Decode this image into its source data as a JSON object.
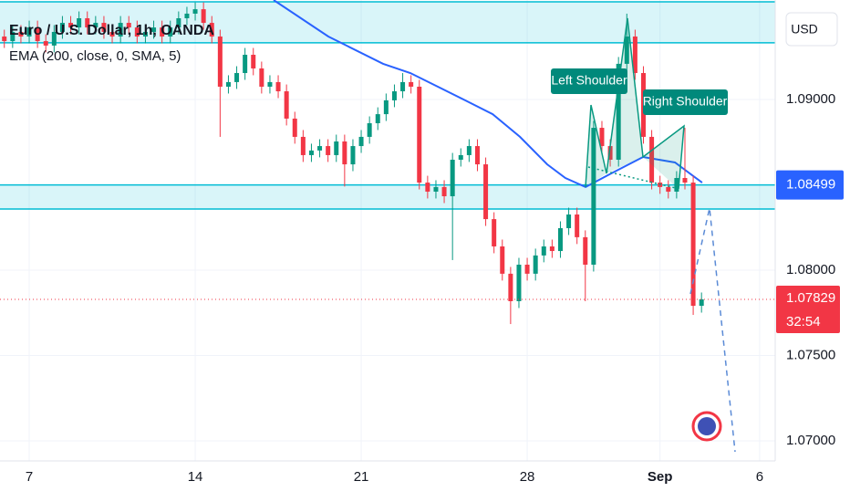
{
  "chart_data": {
    "type": "candlestick",
    "title": "Euro / U.S. Dollar, 1h, OANDA",
    "indicator": "EMA (200, close, 0, SMA, 5)",
    "currency": "USD",
    "annotations": [
      "Left Shoulder",
      "Right Shoulder"
    ],
    "up_color": "#089981",
    "down_color": "#f23645",
    "xlim": [
      -0.88,
      22.47
    ],
    "ylim": [
      1.06882,
      1.09583
    ],
    "grid": true,
    "xticks": [
      {
        "value": 0,
        "label": "7"
      },
      {
        "value": 5,
        "label": "14"
      },
      {
        "value": 10,
        "label": "21"
      },
      {
        "value": 15,
        "label": "28"
      },
      {
        "value": 19,
        "label": "Sep"
      },
      {
        "value": 22,
        "label": "6"
      }
    ],
    "yticks": [
      {
        "value": 1.09,
        "label": "1.09000"
      },
      {
        "value": 1.08,
        "label": "1.08000"
      },
      {
        "value": 1.075,
        "label": "1.07500"
      },
      {
        "value": 1.07,
        "label": "1.07000"
      }
    ],
    "x": [
      -0.75,
      -0.5,
      -0.25,
      0,
      0.25,
      0.5,
      0.75,
      1,
      1.25,
      1.5,
      1.75,
      2,
      2.25,
      2.5,
      2.75,
      3,
      3.25,
      3.5,
      3.75,
      4,
      4.25,
      4.5,
      4.75,
      5,
      5.25,
      5.5,
      5.75,
      6,
      6.25,
      6.5,
      6.75,
      7,
      7.25,
      7.5,
      7.75,
      8,
      8.25,
      8.5,
      8.75,
      9,
      9.25,
      9.5,
      9.75,
      10,
      10.25,
      10.5,
      10.75,
      11,
      11.25,
      11.5,
      11.75,
      12,
      12.25,
      12.5,
      12.75,
      13,
      13.25,
      13.5,
      13.75,
      14,
      14.25,
      14.5,
      14.75,
      15,
      15.25,
      15.5,
      15.75,
      16,
      16.25,
      16.5,
      16.75,
      17,
      17.25,
      17.5,
      17.75,
      18,
      18.25,
      18.5,
      18.75,
      19,
      19.25,
      19.5,
      19.75,
      20,
      20.25
    ],
    "ohlc": [
      [
        1.09369,
        1.09409,
        1.09302,
        1.09342
      ],
      [
        1.09342,
        1.09436,
        1.09302,
        1.09396
      ],
      [
        1.09396,
        1.09436,
        1.09329,
        1.09369
      ],
      [
        1.09369,
        1.09462,
        1.09329,
        1.09422
      ],
      [
        1.09422,
        1.09462,
        1.09302,
        1.09342
      ],
      [
        1.09342,
        1.09382,
        1.09276,
        1.09316
      ],
      [
        1.09316,
        1.09436,
        1.09276,
        1.09396
      ],
      [
        1.09396,
        1.09489,
        1.09356,
        1.09449
      ],
      [
        1.09449,
        1.09489,
        1.09382,
        1.09422
      ],
      [
        1.09422,
        1.09516,
        1.09382,
        1.09476
      ],
      [
        1.09476,
        1.09516,
        1.09382,
        1.09422
      ],
      [
        1.09422,
        1.09489,
        1.09382,
        1.09449
      ],
      [
        1.09449,
        1.09489,
        1.09356,
        1.09396
      ],
      [
        1.09396,
        1.09436,
        1.09329,
        1.09369
      ],
      [
        1.09369,
        1.09489,
        1.09329,
        1.09449
      ],
      [
        1.09449,
        1.09489,
        1.09382,
        1.09422
      ],
      [
        1.09422,
        1.09462,
        1.09329,
        1.09369
      ],
      [
        1.09369,
        1.09436,
        1.09329,
        1.09396
      ],
      [
        1.09396,
        1.09462,
        1.09356,
        1.09422
      ],
      [
        1.09422,
        1.09462,
        1.09329,
        1.09369
      ],
      [
        1.09369,
        1.09462,
        1.09329,
        1.09422
      ],
      [
        1.09422,
        1.09516,
        1.09382,
        1.09476
      ],
      [
        1.09476,
        1.09543,
        1.09436,
        1.09503
      ],
      [
        1.09503,
        1.09569,
        1.09463,
        1.09529
      ],
      [
        1.09529,
        1.09569,
        1.09409,
        1.09449
      ],
      [
        1.09449,
        1.09489,
        1.09329,
        1.09369
      ],
      [
        1.09369,
        1.09409,
        1.08781,
        1.09075
      ],
      [
        1.09075,
        1.09142,
        1.09035,
        1.09102
      ],
      [
        1.09102,
        1.09195,
        1.09062,
        1.09155
      ],
      [
        1.09155,
        1.09302,
        1.09115,
        1.09262
      ],
      [
        1.09262,
        1.09302,
        1.09142,
        1.09182
      ],
      [
        1.09182,
        1.09222,
        1.09035,
        1.09075
      ],
      [
        1.09075,
        1.09142,
        1.09035,
        1.09102
      ],
      [
        1.09102,
        1.09142,
        1.09008,
        1.09048
      ],
      [
        1.09048,
        1.09088,
        1.08848,
        1.08888
      ],
      [
        1.08888,
        1.08928,
        1.08741,
        1.08781
      ],
      [
        1.08781,
        1.08821,
        1.08634,
        1.08674
      ],
      [
        1.08674,
        1.08741,
        1.08634,
        1.08701
      ],
      [
        1.08701,
        1.08767,
        1.08661,
        1.08727
      ],
      [
        1.08727,
        1.08767,
        1.08634,
        1.08674
      ],
      [
        1.08674,
        1.08794,
        1.08634,
        1.08754
      ],
      [
        1.08754,
        1.08794,
        1.0849,
        1.0862
      ],
      [
        1.0862,
        1.08767,
        1.0858,
        1.08727
      ],
      [
        1.08727,
        1.08821,
        1.08687,
        1.08781
      ],
      [
        1.08781,
        1.08901,
        1.08741,
        1.08861
      ],
      [
        1.08861,
        1.08954,
        1.08821,
        1.08914
      ],
      [
        1.08914,
        1.09035,
        1.08874,
        1.08995
      ],
      [
        1.08995,
        1.09088,
        1.08955,
        1.09048
      ],
      [
        1.09048,
        1.09155,
        1.09008,
        1.09102
      ],
      [
        1.09102,
        1.09142,
        1.09035,
        1.09075
      ],
      [
        1.09075,
        1.09115,
        1.08473,
        1.08513
      ],
      [
        1.08513,
        1.08553,
        1.0842,
        1.0846
      ],
      [
        1.0846,
        1.08527,
        1.0842,
        1.08487
      ],
      [
        1.08487,
        1.08527,
        1.08393,
        1.08433
      ],
      [
        1.08433,
        1.08687,
        1.08059,
        1.08647
      ],
      [
        1.08647,
        1.08714,
        1.08607,
        1.08674
      ],
      [
        1.08674,
        1.08767,
        1.08634,
        1.08727
      ],
      [
        1.08727,
        1.08767,
        1.0858,
        1.0862
      ],
      [
        1.0862,
        1.0866,
        1.08259,
        1.08299
      ],
      [
        1.08299,
        1.08339,
        1.08099,
        1.08139
      ],
      [
        1.08139,
        1.08179,
        1.07939,
        1.07979
      ],
      [
        1.07979,
        1.08019,
        1.07684,
        1.07818
      ],
      [
        1.07818,
        1.08072,
        1.07778,
        1.08032
      ],
      [
        1.08032,
        1.08072,
        1.07939,
        1.07979
      ],
      [
        1.07979,
        1.08126,
        1.07939,
        1.08086
      ],
      [
        1.08086,
        1.08179,
        1.08046,
        1.08139
      ],
      [
        1.08139,
        1.08179,
        1.08072,
        1.08112
      ],
      [
        1.08112,
        1.08286,
        1.08072,
        1.08246
      ],
      [
        1.08246,
        1.08366,
        1.08206,
        1.08326
      ],
      [
        1.08326,
        1.08366,
        1.08153,
        1.08193
      ],
      [
        1.08193,
        1.08233,
        1.07818,
        1.08032
      ],
      [
        1.08032,
        1.08874,
        1.07992,
        1.08834
      ],
      [
        1.08834,
        1.08874,
        1.08687,
        1.08727
      ],
      [
        1.08727,
        1.08767,
        1.08607,
        1.08647
      ],
      [
        1.08647,
        1.09249,
        1.08607,
        1.09209
      ],
      [
        1.09209,
        1.09503,
        1.09169,
        1.09369
      ],
      [
        1.09369,
        1.09409,
        1.09115,
        1.09155
      ],
      [
        1.09155,
        1.09195,
        1.08741,
        1.08781
      ],
      [
        1.08781,
        1.08821,
        1.08473,
        1.08513
      ],
      [
        1.08513,
        1.08553,
        1.08447,
        1.08487
      ],
      [
        1.08487,
        1.08527,
        1.0842,
        1.0846
      ],
      [
        1.0846,
        1.0858,
        1.0842,
        1.0854
      ],
      [
        1.0854,
        1.08834,
        1.08473,
        1.08513
      ],
      [
        1.08513,
        1.08553,
        1.07738,
        1.07791
      ],
      [
        1.07791,
        1.07869,
        1.07751,
        1.07829
      ]
    ],
    "ema": {
      "color": "#2962ff",
      "x": [
        7.36,
        9.01,
        10.66,
        11.48,
        12.31,
        13.13,
        13.96,
        14.78,
        15.6,
        16.15,
        16.76,
        17.53,
        18.49,
        19.45,
        20.27
      ],
      "values": [
        1.09583,
        1.09369,
        1.09209,
        1.09155,
        1.09075,
        1.08995,
        1.08914,
        1.08781,
        1.0862,
        1.0854,
        1.08487,
        1.08567,
        1.08663,
        1.08631,
        1.08513
      ]
    },
    "zones": [
      [
        1.09572,
        1.09332
      ],
      [
        1.08499,
        1.08358
      ]
    ],
    "zone_tag": 1.08499,
    "last_price": 1.07829,
    "countdown": "32:54"
  }
}
